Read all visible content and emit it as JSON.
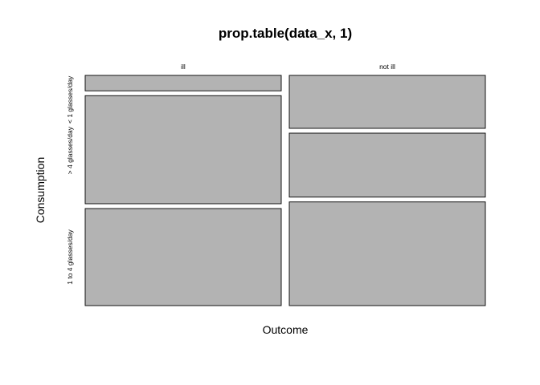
{
  "chart_data": {
    "type": "mosaic",
    "title": "prop.table(data_x, 1)",
    "xlabel": "Outcome",
    "ylabel": "Consumption",
    "columns": [
      "ill",
      "not ill"
    ],
    "column_proportions": [
      0.5,
      0.5
    ],
    "rows": [
      "< 1 glasses/day",
      "> 4 glasses/day",
      "1 to 4 glasses/day"
    ],
    "cell_proportions": {
      "ill": [
        0.07,
        0.49,
        0.44
      ],
      "not ill": [
        0.24,
        0.29,
        0.47
      ]
    },
    "colors": {
      "fill": "#b3b3b3",
      "stroke": "#000000"
    }
  }
}
